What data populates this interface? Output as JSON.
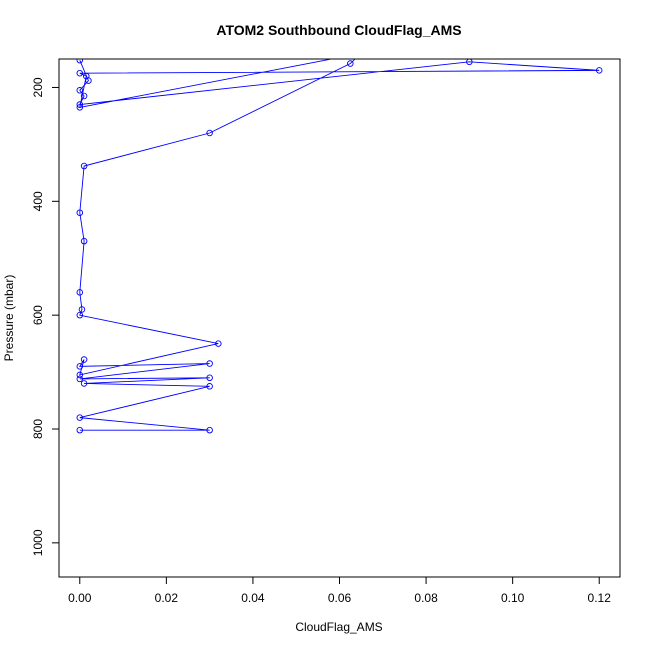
{
  "chart_data": {
    "type": "line",
    "title": "ATOM2 Southbound CloudFlag_AMS",
    "xlabel": "CloudFlag_AMS",
    "ylabel": "Pressure (mbar)",
    "xlim": [
      -0.0048,
      0.1248
    ],
    "ylim": [
      1060,
      150
    ],
    "y_reversed": true,
    "x_ticks": [
      "0.00",
      "0.02",
      "0.04",
      "0.06",
      "0.08",
      "0.10",
      "0.12"
    ],
    "y_ticks": [
      "200",
      "400",
      "600",
      "800",
      "1000"
    ],
    "grid": false,
    "legend": "none",
    "series_color": "#0000ff",
    "series": [
      {
        "x": [
          0,
          0.002,
          0,
          0.001,
          0,
          0.09,
          0.12,
          0,
          0.0015,
          0,
          0.065,
          0.0625,
          0.03,
          0.001,
          0,
          0.001,
          0,
          0.0005,
          0,
          0.032,
          0,
          0.001,
          0,
          0.03,
          0,
          0.03,
          0.001,
          0.03,
          0,
          0.03,
          0
        ],
        "y": [
          152,
          188,
          205,
          215,
          230,
          155,
          170,
          175,
          180,
          235,
          140,
          158,
          280,
          338,
          420,
          470,
          560,
          590,
          600,
          650,
          705,
          678,
          690,
          685,
          712,
          710,
          720,
          725,
          780,
          802,
          802
        ]
      }
    ]
  }
}
